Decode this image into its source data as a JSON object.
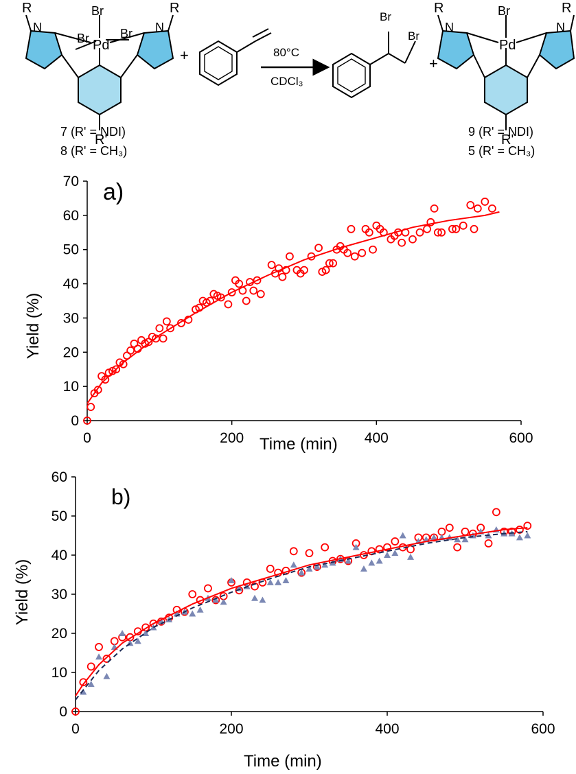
{
  "scheme": {
    "br": "Br",
    "pd": "Pd",
    "n": "N",
    "r": "R",
    "r_prime": "R'",
    "plus": "+",
    "conditions_top": "80°C",
    "conditions_bottom": "CDCl₃",
    "compound_7": "7 (R' = NDI)",
    "compound_8": "8 (R' = CH₃)",
    "compound_9": "9 (R' = NDI)",
    "compound_5": "5 (R' = CH₃)",
    "ring_fill": "#a8dcef",
    "ring_fill_dark": "#6cc3e6"
  },
  "chart_data": [
    {
      "type": "scatter",
      "panel_label": "a)",
      "xlabel": "Time (min)",
      "ylabel": "Yield (%)",
      "xlim": [
        0,
        600
      ],
      "ylim": [
        0,
        70
      ],
      "xticks": [
        0,
        200,
        400,
        600
      ],
      "yticks": [
        0,
        10,
        20,
        30,
        40,
        50,
        60,
        70
      ],
      "grid": false,
      "series": [
        {
          "marker": "circle",
          "color": "#ff0000",
          "points": [
            [
              0,
              0
            ],
            [
              5,
              4
            ],
            [
              10,
              8
            ],
            [
              15,
              9
            ],
            [
              20,
              13
            ],
            [
              25,
              12
            ],
            [
              30,
              14
            ],
            [
              35,
              14.5
            ],
            [
              40,
              15
            ],
            [
              45,
              17
            ],
            [
              50,
              16.5
            ],
            [
              55,
              19
            ],
            [
              60,
              20.5
            ],
            [
              65,
              22.5
            ],
            [
              70,
              21
            ],
            [
              75,
              23.5
            ],
            [
              80,
              22.5
            ],
            [
              85,
              23
            ],
            [
              90,
              24.5
            ],
            [
              95,
              24
            ],
            [
              100,
              27
            ],
            [
              105,
              24
            ],
            [
              110,
              29
            ],
            [
              115,
              27
            ],
            [
              130,
              28.5
            ],
            [
              140,
              29.5
            ],
            [
              150,
              32.5
            ],
            [
              155,
              33
            ],
            [
              160,
              35
            ],
            [
              165,
              34.5
            ],
            [
              170,
              35
            ],
            [
              175,
              37
            ],
            [
              180,
              36.5
            ],
            [
              185,
              36
            ],
            [
              195,
              34
            ],
            [
              200,
              37.5
            ],
            [
              205,
              41
            ],
            [
              210,
              40
            ],
            [
              215,
              38
            ],
            [
              220,
              35
            ],
            [
              225,
              40.5
            ],
            [
              230,
              38
            ],
            [
              235,
              41
            ],
            [
              240,
              37
            ],
            [
              255,
              45.5
            ],
            [
              260,
              43
            ],
            [
              265,
              44.5
            ],
            [
              270,
              42
            ],
            [
              275,
              44
            ],
            [
              280,
              48
            ],
            [
              290,
              44
            ],
            [
              295,
              43
            ],
            [
              300,
              44
            ],
            [
              310,
              48
            ],
            [
              320,
              50.5
            ],
            [
              325,
              43.5
            ],
            [
              330,
              44
            ],
            [
              335,
              46
            ],
            [
              340,
              46
            ],
            [
              345,
              50
            ],
            [
              350,
              51
            ],
            [
              355,
              50
            ],
            [
              360,
              49
            ],
            [
              365,
              56
            ],
            [
              370,
              48
            ],
            [
              380,
              49
            ],
            [
              385,
              56
            ],
            [
              390,
              55
            ],
            [
              395,
              50
            ],
            [
              400,
              57
            ],
            [
              405,
              56
            ],
            [
              410,
              55
            ],
            [
              420,
              53
            ],
            [
              425,
              54
            ],
            [
              430,
              55
            ],
            [
              435,
              52
            ],
            [
              440,
              55
            ],
            [
              450,
              53
            ],
            [
              460,
              55
            ],
            [
              470,
              56
            ],
            [
              475,
              58
            ],
            [
              480,
              62
            ],
            [
              485,
              55
            ],
            [
              490,
              55
            ],
            [
              505,
              56
            ],
            [
              510,
              56
            ],
            [
              520,
              57
            ],
            [
              530,
              63
            ],
            [
              535,
              56
            ],
            [
              540,
              62
            ],
            [
              550,
              64
            ],
            [
              560,
              62
            ]
          ]
        },
        {
          "marker": "line",
          "color": "#ff0000",
          "fit": [
            [
              0,
              5
            ],
            [
              20,
              11
            ],
            [
              50,
              17
            ],
            [
              100,
              25
            ],
            [
              150,
              31.5
            ],
            [
              200,
              37.5
            ],
            [
              250,
              42.5
            ],
            [
              300,
              47
            ],
            [
              350,
              50.5
            ],
            [
              400,
              53.5
            ],
            [
              450,
              56.5
            ],
            [
              500,
              58.5
            ],
            [
              550,
              60
            ],
            [
              570,
              61
            ]
          ]
        }
      ]
    },
    {
      "type": "scatter",
      "panel_label": "b)",
      "xlabel": "Time (min)",
      "ylabel": "Yield (%)",
      "xlim": [
        0,
        600
      ],
      "ylim": [
        0,
        60
      ],
      "xticks": [
        0,
        200,
        400,
        600
      ],
      "yticks": [
        0,
        10,
        20,
        30,
        40,
        50,
        60
      ],
      "grid": false,
      "series": [
        {
          "marker": "circle",
          "color": "#ff0000",
          "points": [
            [
              0,
              0
            ],
            [
              10,
              7.5
            ],
            [
              20,
              11.5
            ],
            [
              30,
              16.5
            ],
            [
              40,
              13.5
            ],
            [
              50,
              18
            ],
            [
              60,
              19
            ],
            [
              70,
              19
            ],
            [
              80,
              20.5
            ],
            [
              90,
              21.5
            ],
            [
              100,
              22.5
            ],
            [
              110,
              23
            ],
            [
              120,
              24
            ],
            [
              130,
              26
            ],
            [
              140,
              25.5
            ],
            [
              150,
              30
            ],
            [
              160,
              28.5
            ],
            [
              170,
              31.5
            ],
            [
              180,
              28.5
            ],
            [
              190,
              29.5
            ],
            [
              200,
              33
            ],
            [
              210,
              31
            ],
            [
              220,
              33
            ],
            [
              230,
              32
            ],
            [
              240,
              33
            ],
            [
              250,
              36.5
            ],
            [
              260,
              35.5
            ],
            [
              270,
              36
            ],
            [
              280,
              41
            ],
            [
              290,
              35.5
            ],
            [
              300,
              40.5
            ],
            [
              310,
              37
            ],
            [
              320,
              42
            ],
            [
              330,
              38.5
            ],
            [
              340,
              39
            ],
            [
              350,
              38.5
            ],
            [
              360,
              43
            ],
            [
              370,
              40
            ],
            [
              380,
              41
            ],
            [
              390,
              41.5
            ],
            [
              400,
              42
            ],
            [
              410,
              43.5
            ],
            [
              420,
              42
            ],
            [
              430,
              41.5
            ],
            [
              440,
              44.5
            ],
            [
              450,
              44.5
            ],
            [
              460,
              44.5
            ],
            [
              470,
              46
            ],
            [
              480,
              47
            ],
            [
              490,
              42
            ],
            [
              500,
              46
            ],
            [
              510,
              45.5
            ],
            [
              520,
              47
            ],
            [
              530,
              43
            ],
            [
              540,
              51
            ],
            [
              550,
              46
            ],
            [
              560,
              46
            ],
            [
              570,
              46.5
            ],
            [
              580,
              47.5
            ]
          ]
        },
        {
          "marker": "triangle",
          "color": "#7b88b4",
          "points": [
            [
              10,
              5
            ],
            [
              20,
              7
            ],
            [
              30,
              14
            ],
            [
              40,
              9
            ],
            [
              50,
              16.5
            ],
            [
              60,
              20
            ],
            [
              70,
              17.5
            ],
            [
              80,
              18
            ],
            [
              90,
              20
            ],
            [
              100,
              21.5
            ],
            [
              110,
              23
            ],
            [
              120,
              23.5
            ],
            [
              130,
              25
            ],
            [
              140,
              25.5
            ],
            [
              150,
              25
            ],
            [
              160,
              26
            ],
            [
              170,
              29
            ],
            [
              180,
              28.5
            ],
            [
              190,
              28
            ],
            [
              200,
              33.5
            ],
            [
              210,
              31.5
            ],
            [
              220,
              32
            ],
            [
              230,
              29
            ],
            [
              240,
              28.5
            ],
            [
              250,
              33
            ],
            [
              260,
              33
            ],
            [
              270,
              33.5
            ],
            [
              280,
              37.5
            ],
            [
              290,
              35.5
            ],
            [
              300,
              36.5
            ],
            [
              310,
              37
            ],
            [
              320,
              37.5
            ],
            [
              330,
              38
            ],
            [
              340,
              39
            ],
            [
              350,
              38.5
            ],
            [
              360,
              42
            ],
            [
              370,
              36.5
            ],
            [
              380,
              38
            ],
            [
              390,
              38.5
            ],
            [
              400,
              40
            ],
            [
              410,
              40.5
            ],
            [
              420,
              45
            ],
            [
              430,
              39.5
            ],
            [
              440,
              43.5
            ],
            [
              450,
              44
            ],
            [
              460,
              44.5
            ],
            [
              470,
              44.5
            ],
            [
              480,
              44.5
            ],
            [
              490,
              44
            ],
            [
              500,
              44
            ],
            [
              510,
              45
            ],
            [
              520,
              46
            ],
            [
              530,
              45
            ],
            [
              540,
              46.5
            ],
            [
              550,
              45.5
            ],
            [
              560,
              45.5
            ],
            [
              570,
              44.5
            ],
            [
              580,
              45
            ]
          ]
        },
        {
          "marker": "line",
          "color": "#ff0000",
          "fit": [
            [
              0,
              4
            ],
            [
              10,
              7
            ],
            [
              30,
              12
            ],
            [
              60,
              17.5
            ],
            [
              100,
              22.5
            ],
            [
              150,
              27.5
            ],
            [
              200,
              31.5
            ],
            [
              250,
              34.5
            ],
            [
              300,
              37.5
            ],
            [
              350,
              39.5
            ],
            [
              400,
              41.5
            ],
            [
              450,
              43.5
            ],
            [
              500,
              45
            ],
            [
              550,
              46.5
            ],
            [
              580,
              47
            ]
          ]
        },
        {
          "marker": "dashed-line",
          "color": "#1c2a55",
          "fit": [
            [
              0,
              3
            ],
            [
              10,
              5.5
            ],
            [
              30,
              10.5
            ],
            [
              60,
              16
            ],
            [
              100,
              21.5
            ],
            [
              150,
              26.5
            ],
            [
              200,
              30.5
            ],
            [
              250,
              34
            ],
            [
              300,
              37
            ],
            [
              350,
              39
            ],
            [
              400,
              41
            ],
            [
              450,
              43
            ],
            [
              500,
              44.5
            ],
            [
              550,
              45.5
            ],
            [
              580,
              46
            ]
          ]
        }
      ]
    }
  ]
}
